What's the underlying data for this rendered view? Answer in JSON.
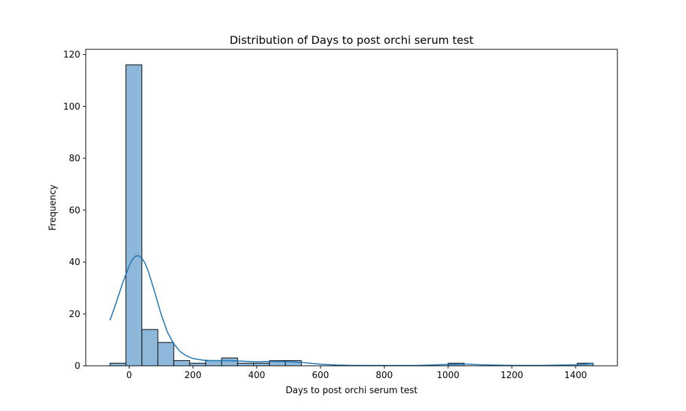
{
  "chart_data": {
    "type": "bar",
    "title": "Distribution of Days to post orchi serum test",
    "xlabel": "Days to post orchi serum test",
    "ylabel": "Frequency",
    "xlim": [
      -136,
      1531
    ],
    "ylim": [
      0,
      122
    ],
    "xticks": [
      0,
      200,
      400,
      600,
      800,
      1000,
      1200,
      1400
    ],
    "yticks": [
      0,
      20,
      40,
      60,
      80,
      100,
      120
    ],
    "grid": false,
    "legend": "none",
    "colors": {
      "bar": "#8db8da",
      "kde": "#1f77b4"
    },
    "bins": [
      {
        "x0": -60,
        "x1": -10,
        "count": 1
      },
      {
        "x0": -10,
        "x1": 40,
        "count": 116
      },
      {
        "x0": 40,
        "x1": 90,
        "count": 14
      },
      {
        "x0": 90,
        "x1": 140,
        "count": 9
      },
      {
        "x0": 140,
        "x1": 190,
        "count": 2
      },
      {
        "x0": 190,
        "x1": 240,
        "count": 1
      },
      {
        "x0": 240,
        "x1": 290,
        "count": 2
      },
      {
        "x0": 290,
        "x1": 340,
        "count": 3
      },
      {
        "x0": 340,
        "x1": 390,
        "count": 1
      },
      {
        "x0": 390,
        "x1": 440,
        "count": 1
      },
      {
        "x0": 440,
        "x1": 490,
        "count": 2
      },
      {
        "x0": 490,
        "x1": 540,
        "count": 2
      },
      {
        "x0": 1000,
        "x1": 1050,
        "count": 1
      },
      {
        "x0": 1405,
        "x1": 1455,
        "count": 1
      }
    ],
    "kde": {
      "x": [
        -60,
        -40,
        -20,
        0,
        10,
        20,
        30,
        40,
        50,
        60,
        80,
        100,
        120,
        140,
        160,
        180,
        200,
        230,
        260,
        300,
        350,
        400,
        450,
        500,
        550,
        600,
        650,
        700,
        800,
        900,
        1000,
        1050,
        1100,
        1200,
        1300,
        1400,
        1455
      ],
      "y": [
        17.5,
        24.5,
        32.0,
        38.5,
        41.0,
        42.3,
        42.4,
        41.5,
        39.5,
        36.5,
        28.5,
        20.0,
        13.0,
        8.5,
        5.5,
        3.8,
        2.8,
        2.2,
        2.0,
        2.0,
        1.8,
        1.5,
        1.7,
        1.6,
        1.2,
        0.6,
        0.3,
        0.15,
        0.1,
        0.1,
        0.5,
        0.7,
        0.4,
        0.15,
        0.15,
        0.4,
        0.9
      ]
    }
  }
}
